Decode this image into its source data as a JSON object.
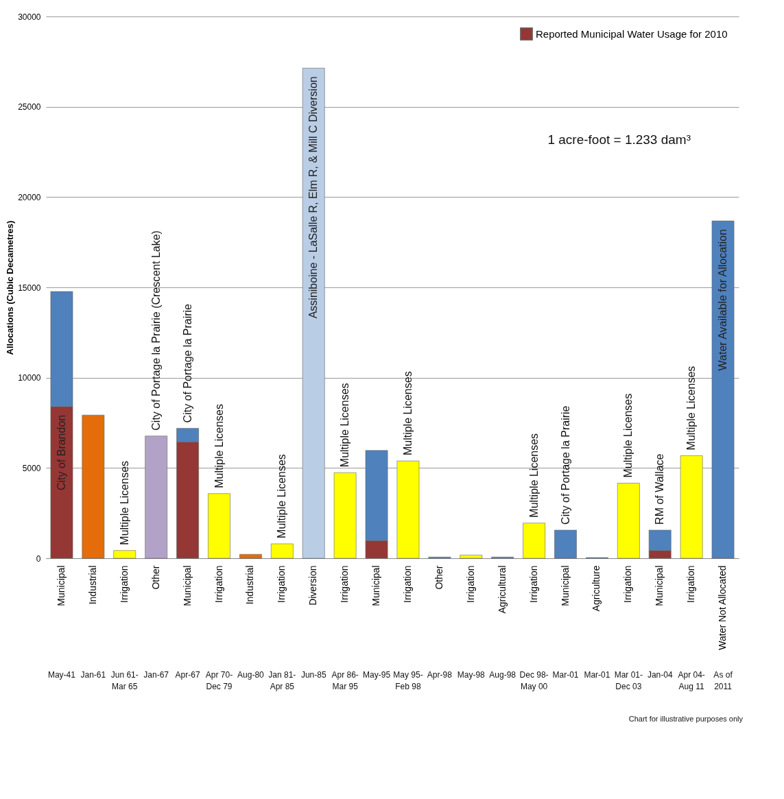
{
  "chart_data": {
    "type": "bar",
    "stacked": true,
    "ylabel": "Allocations (Cubic Decametres)",
    "categories": [
      "Municipal",
      "Industrial",
      "Irrigation",
      "Other",
      "Municipal",
      "Irrigation",
      "Industrial",
      "Irrigation",
      "Diversion",
      "Irrigation",
      "Municipal",
      "Irrigation",
      "Other",
      "Irrigation",
      "Agricultural",
      "Irrigation",
      "Municipal",
      "Agriculture",
      "Irrigation",
      "Municipal",
      "Irrigation",
      "Water Not Allocated"
    ],
    "series": [
      {
        "name": "Reported Municipal Water Usage for 2010",
        "color": "#953735",
        "values": [
          8400,
          null,
          null,
          null,
          6440,
          null,
          null,
          null,
          null,
          null,
          980,
          null,
          null,
          null,
          null,
          null,
          null,
          null,
          null,
          430,
          null,
          null
        ],
        "value_labels": [
          "City of Brandon",
          null,
          null,
          null,
          null,
          null,
          null,
          null,
          null,
          null,
          null,
          null,
          null,
          null,
          null,
          null,
          null,
          null,
          null,
          null,
          null,
          null
        ]
      },
      {
        "colors": [
          "#4f81bd",
          "#e46c0a",
          "#ffff00",
          "#b3a2c7",
          "#4f81bd",
          "#ffff00",
          "#e46c0a",
          "#ffff00",
          "#b9cde5",
          "#ffff00",
          "#4f81bd",
          "#ffff00",
          "#4f81bd",
          "#ffff00",
          "#4f81bd",
          "#ffff00",
          "#4f81bd",
          "#4f81bd",
          "#ffff00",
          "#4f81bd",
          "#ffff00",
          "#4f81bd"
        ],
        "values": [
          6370,
          7930,
          430,
          6770,
          760,
          3580,
          220,
          800,
          27140,
          4740,
          4990,
          5390,
          70,
          180,
          70,
          1950,
          1560,
          40,
          4160,
          1130,
          5680,
          18680
        ],
        "value_labels": [
          null,
          null,
          "Multiple Licenses",
          "City of Portage la Prairie (Crescent Lake)",
          "City of Portage la Prairie",
          "Multiple Licenses",
          null,
          "Multiple Licenses",
          "Assiniboine - LaSalle R, Elm R, & Mill C Diversion",
          "Multiple Licenses",
          null,
          "Multiple Licenses",
          null,
          null,
          null,
          "Multiple Licenses",
          "City of Portage la Prairie",
          null,
          "Multiple Licenses",
          "RM of Wallace",
          "Multiple Licenses",
          "Water Available for Allocation"
        ]
      }
    ],
    "ylim": [
      0,
      30000
    ],
    "yticks": [
      0,
      5000,
      10000,
      15000,
      20000,
      25000,
      30000
    ],
    "grid": "y",
    "legend": "top right",
    "annotations": [
      "May-41",
      "Jan-61",
      "Jun 61-Mar 65",
      "Jan-67",
      "Apr-67",
      "Apr 70-Dec 79",
      "Aug-80",
      "Jan 81-Apr 85",
      "Jun-85",
      "Apr 86-Mar 95",
      "May-95",
      "May 95-Feb 98",
      "Apr-98",
      "May-98",
      "Aug-98",
      "Dec 98-May 00",
      "Mar-01",
      "Mar-01",
      "Mar 01-Dec 03",
      "Jan-04",
      "Apr 04-Aug 11",
      "As of 2011",
      "1 acre-foot = 1.233 dam³",
      "Chart for illustrative purposes only"
    ]
  }
}
